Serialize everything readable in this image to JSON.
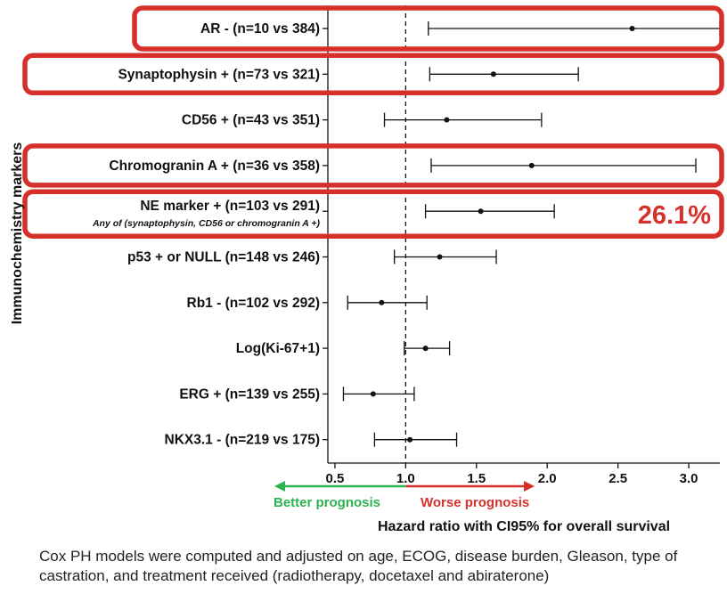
{
  "chart_data": {
    "type": "forest",
    "ylabel": "Immunochemistry markers",
    "xlabel": "Hazard ratio with CI95% for overall survival",
    "xlim": [
      0.45,
      3.22
    ],
    "xticks": [
      0.5,
      1.0,
      1.5,
      2.0,
      2.5,
      3.0
    ],
    "xtick_labels": [
      "0.5",
      "1.0",
      "1.5",
      "2.0",
      "2.5",
      "3.0"
    ],
    "reference_line": 1.0,
    "grid": false,
    "rows": [
      {
        "label": "AR - (n=10 vs 384)",
        "hr": 2.6,
        "lo": 1.16,
        "hi": 3.22,
        "highlighted": true
      },
      {
        "label": "Synaptophysin + (n=73 vs 321)",
        "hr": 1.62,
        "lo": 1.17,
        "hi": 2.22,
        "highlighted": true
      },
      {
        "label": "CD56 + (n=43 vs 351)",
        "hr": 1.29,
        "lo": 0.85,
        "hi": 1.96,
        "highlighted": false
      },
      {
        "label": "Chromogranin A + (n=36 vs 358)",
        "hr": 1.89,
        "lo": 1.18,
        "hi": 3.05,
        "highlighted": true
      },
      {
        "label": "NE marker + (n=103 vs 291)",
        "sublabel": "Any of (synaptophysin, CD56 or chromogranin A +)",
        "hr": 1.53,
        "lo": 1.14,
        "hi": 2.05,
        "highlighted": true,
        "annotation": "26.1%"
      },
      {
        "label": "p53 + or NULL (n=148 vs 246)",
        "hr": 1.24,
        "lo": 0.92,
        "hi": 1.64,
        "highlighted": false
      },
      {
        "label": "Rb1 - (n=102 vs 292)",
        "hr": 0.83,
        "lo": 0.59,
        "hi": 1.15,
        "highlighted": false
      },
      {
        "label": "Log(Ki-67+1)",
        "hr": 1.14,
        "lo": 0.99,
        "hi": 1.31,
        "highlighted": false
      },
      {
        "label": "ERG + (n=139 vs 255)",
        "hr": 0.77,
        "lo": 0.56,
        "hi": 1.06,
        "highlighted": false
      },
      {
        "label": "NKX3.1 - (n=219 vs 175)",
        "hr": 1.03,
        "lo": 0.78,
        "hi": 1.36,
        "highlighted": false
      }
    ],
    "arrows": {
      "left_label": "Better prognosis",
      "right_label": "Worse prognosis",
      "left_color": "#2bb34f",
      "right_color": "#d6302b"
    },
    "colors": {
      "highlight": "#d6302b",
      "annotation": "#d6302b",
      "ink": "#111111"
    }
  },
  "caption": "Cox PH models were computed and adjusted on age, ECOG, disease burden, Gleason, type of castration, and treatment received (radiotherapy, docetaxel and abiraterone)"
}
